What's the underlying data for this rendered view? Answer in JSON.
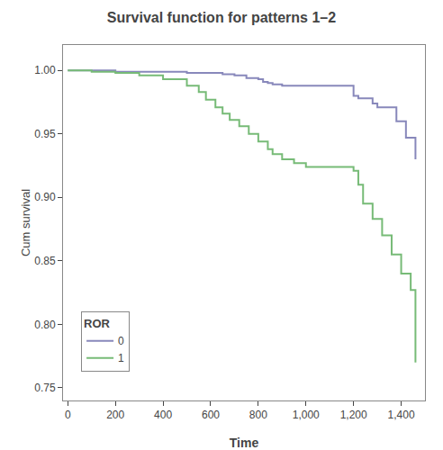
{
  "chart_data": {
    "type": "line",
    "title": "Survival function for patterns 1–2",
    "xlabel": "Time",
    "ylabel": "Cum survival",
    "xlim": [
      -20,
      1500
    ],
    "ylim": [
      0.74,
      1.02
    ],
    "xticks": [
      0,
      200,
      400,
      600,
      800,
      {
        "value": 1000,
        "label": "1,000"
      },
      {
        "value": 1200,
        "label": "1,200"
      },
      {
        "value": 1400,
        "label": "1,400"
      }
    ],
    "yticks": [
      0.75,
      {
        "value": 0.8,
        "label": "0.80"
      },
      0.85,
      {
        "value": 0.9,
        "label": "0.90"
      },
      0.95,
      {
        "value": 1.0,
        "label": "1.00"
      }
    ],
    "grid": false,
    "legend": "lower left",
    "legend_title": "ROR",
    "line_style": "step",
    "series": [
      {
        "name": "0",
        "color": "#8888bb",
        "x": [
          0,
          100,
          200,
          300,
          400,
          500,
          550,
          600,
          650,
          700,
          750,
          800,
          820,
          840,
          860,
          900,
          1200,
          1220,
          1280,
          1300,
          1380,
          1420,
          1460
        ],
        "values": [
          1.0,
          1.0,
          0.999,
          0.999,
          0.999,
          0.998,
          0.998,
          0.998,
          0.997,
          0.996,
          0.994,
          0.993,
          0.991,
          0.99,
          0.989,
          0.988,
          0.98,
          0.978,
          0.974,
          0.971,
          0.96,
          0.947,
          0.93
        ]
      },
      {
        "name": "1",
        "color": "#77bb77",
        "x": [
          0,
          100,
          200,
          300,
          400,
          500,
          550,
          580,
          620,
          650,
          680,
          720,
          760,
          800,
          840,
          860,
          900,
          950,
          1000,
          1200,
          1220,
          1240,
          1280,
          1320,
          1360,
          1400,
          1440,
          1460
        ],
        "values": [
          1.0,
          0.999,
          0.998,
          0.996,
          0.993,
          0.988,
          0.983,
          0.977,
          0.971,
          0.966,
          0.961,
          0.956,
          0.95,
          0.944,
          0.938,
          0.934,
          0.93,
          0.927,
          0.924,
          0.921,
          0.91,
          0.895,
          0.883,
          0.87,
          0.855,
          0.84,
          0.827,
          0.77
        ]
      }
    ]
  }
}
